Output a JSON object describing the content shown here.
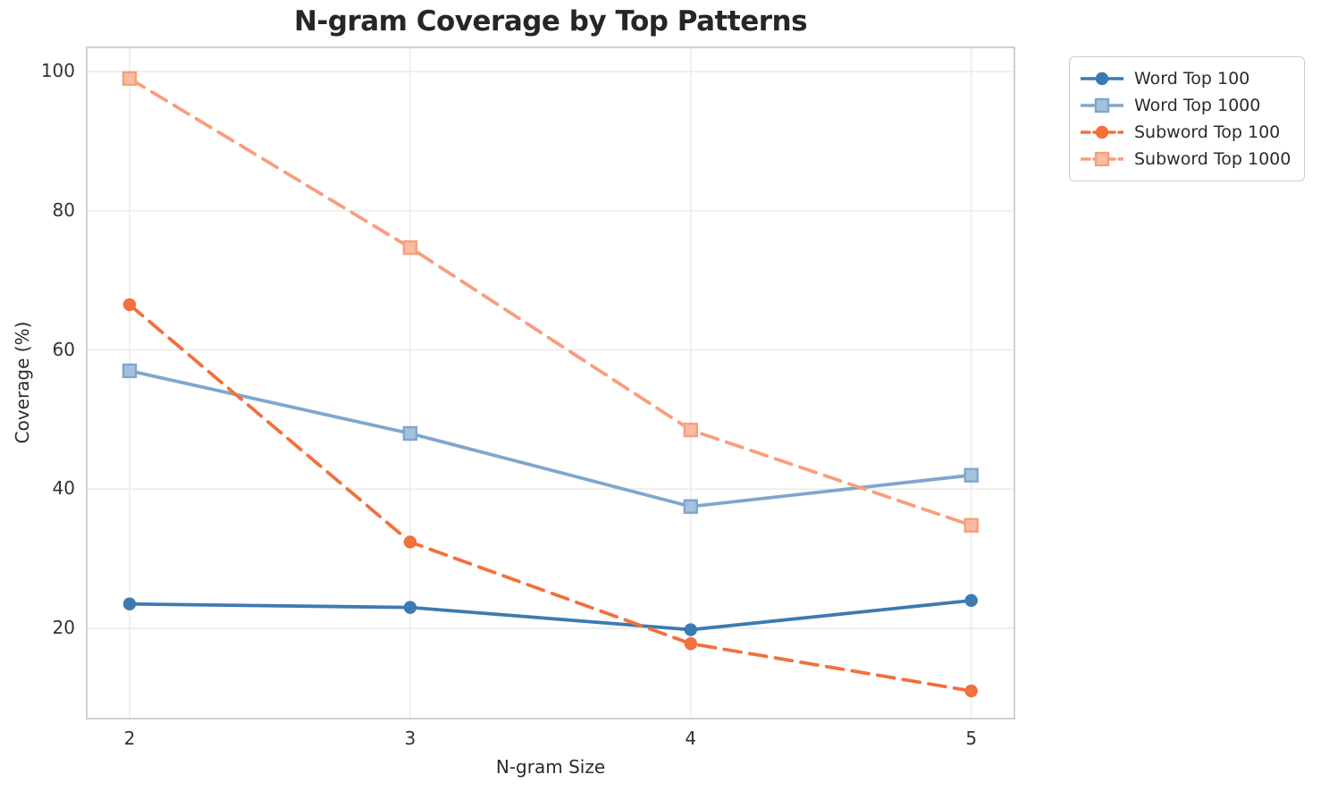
{
  "figure": {
    "background": "#ffffff"
  },
  "chart_data": {
    "type": "line",
    "title": "N-gram Coverage by Top Patterns",
    "xlabel": "N-gram Size",
    "ylabel": "Coverage (%)",
    "x": [
      2,
      3,
      4,
      5
    ],
    "xticks": [
      2,
      3,
      4,
      5
    ],
    "yticks": [
      20,
      40,
      60,
      80,
      100
    ],
    "xlim": [
      1.844,
      5.157
    ],
    "ylim": [
      6.9,
      103.6
    ],
    "grid": true,
    "legend_position": "outside-upper-right",
    "series": [
      {
        "name": "Word Top 100",
        "color": "#3D7AB1",
        "linestyle": "solid",
        "marker": "circle",
        "values": [
          23.5,
          23.0,
          19.8,
          24.0
        ]
      },
      {
        "name": "Word Top 1000",
        "color": "#7FA6CE",
        "linestyle": "solid",
        "marker": "square",
        "values": [
          57.0,
          48.0,
          37.5,
          42.0
        ]
      },
      {
        "name": "Subword Top 100",
        "color": "#F2703C",
        "linestyle": "dashed",
        "marker": "circle",
        "values": [
          66.5,
          32.4,
          17.8,
          11.0
        ]
      },
      {
        "name": "Subword Top 1000",
        "color": "#F89E7C",
        "linestyle": "dashed",
        "marker": "square",
        "values": [
          99.0,
          74.7,
          48.5,
          34.8
        ]
      }
    ],
    "style": {
      "grid_color": "#E9E9E9",
      "spine_color": "#D0D0D0",
      "tick_label_color": "#333333",
      "text_color": "#262626"
    }
  }
}
